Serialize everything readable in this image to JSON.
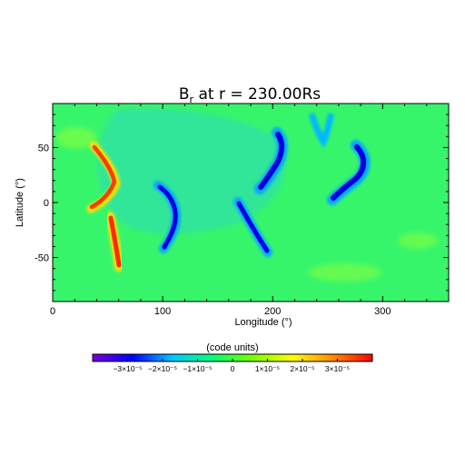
{
  "chart_data": {
    "type": "heatmap",
    "title": "B",
    "title_subscript": "r",
    "title_suffix": " at r = 230.00Rs",
    "xlabel": "Longitude (°)",
    "ylabel": "Latitude (°)",
    "xlim": [
      0,
      360
    ],
    "ylim": [
      -90,
      90
    ],
    "xticks": [
      {
        "value": 0,
        "label": "0"
      },
      {
        "value": 100,
        "label": "100"
      },
      {
        "value": 200,
        "label": "200"
      },
      {
        "value": 300,
        "label": "300"
      }
    ],
    "yticks": [
      {
        "value": 50,
        "label": "50"
      },
      {
        "value": 0,
        "label": "0"
      },
      {
        "value": -50,
        "label": "-50"
      }
    ],
    "background_value": 1e-06,
    "features": [
      {
        "kind": "positive",
        "lon": 54,
        "lat": 28,
        "peak": 3.6e-05,
        "note": "upper red ridge"
      },
      {
        "kind": "positive",
        "lon": 41,
        "lat": -2,
        "peak": 2.8e-05,
        "note": "short red tail"
      },
      {
        "kind": "positive",
        "lon": 56,
        "lat": -40,
        "peak": 3.6e-05,
        "note": "lower red ridge"
      },
      {
        "kind": "negative",
        "lon": 110,
        "lat": -18,
        "peak": -2.8e-05,
        "note": "blue arc"
      },
      {
        "kind": "negative",
        "lon": 180,
        "lat": -25,
        "peak": -2.6e-05,
        "note": "blue arc"
      },
      {
        "kind": "negative",
        "lon": 200,
        "lat": 35,
        "peak": -3.4e-05,
        "note": "blue ridge"
      },
      {
        "kind": "negative",
        "lon": 275,
        "lat": 27,
        "peak": -3.2e-05,
        "note": "blue ridge"
      },
      {
        "kind": "negative",
        "lon": 243,
        "lat": 70,
        "peak": -1.4e-05,
        "note": "cyan lobe"
      }
    ],
    "colorbar": {
      "label": "(code units)",
      "range": [
        -4e-05,
        4e-05
      ],
      "ticks": [
        {
          "value": -3e-05,
          "label": "−3×10⁻⁵"
        },
        {
          "value": -2e-05,
          "label": "−2×10⁻⁵"
        },
        {
          "value": -1e-05,
          "label": "−1×10⁻⁵"
        },
        {
          "value": 0,
          "label": "0"
        },
        {
          "value": 1e-05,
          "label": "1×10⁻⁵"
        },
        {
          "value": 2e-05,
          "label": "2×10⁻⁵"
        },
        {
          "value": 3e-05,
          "label": "3×10⁻⁵"
        }
      ],
      "colormap": [
        "#7a00d6",
        "#0000ff",
        "#00c8ff",
        "#00ff78",
        "#78ff00",
        "#ffff00",
        "#ff8c00",
        "#ff0000"
      ]
    }
  }
}
